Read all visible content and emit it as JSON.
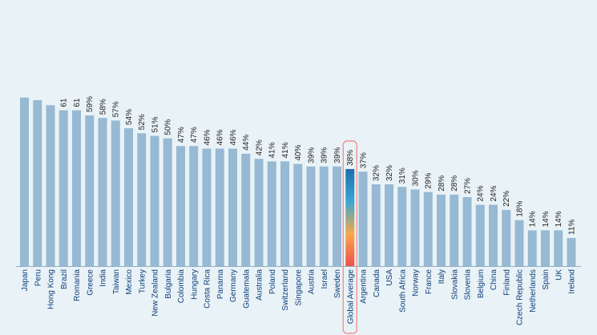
{
  "chart_data": {
    "type": "bar",
    "title": "",
    "xlabel": "",
    "ylabel": "",
    "ylim": [
      0,
      65
    ],
    "highlight_category": "Global Average",
    "categories": [
      "Japan",
      "Peru",
      "Hong Kong",
      "Brazil",
      "Romania",
      "Greece",
      "India",
      "Taiwan",
      "Mexico",
      "Turkey",
      "New Zealand",
      "Bulgaria",
      "Colombia",
      "Hungary",
      "Costa Rica",
      "Panama",
      "Germany",
      "Guatemala",
      "Australia",
      "Poland",
      "Switzerland",
      "Singapore",
      "Austria",
      "Israel",
      "Sweden",
      "Global Average",
      "Argentina",
      "Canada",
      "USA",
      "South Africa",
      "Norway",
      "France",
      "Italy",
      "Slovakia",
      "Slovenia",
      "Belgium",
      "China",
      "Finland",
      "Czech Republic",
      "Netherlands",
      "Spain",
      "UK",
      "Ireland"
    ],
    "values": [
      66,
      65,
      63,
      61,
      61,
      59,
      58,
      57,
      54,
      52,
      51,
      50,
      47,
      47,
      46,
      46,
      46,
      44,
      42,
      41,
      41,
      40,
      39,
      39,
      39,
      38,
      37,
      32,
      32,
      31,
      30,
      29,
      28,
      28,
      27,
      24,
      24,
      22,
      18,
      14,
      14,
      14,
      11
    ],
    "value_labels": [
      "",
      "",
      "",
      "61",
      "61",
      "59%",
      "58%",
      "57%",
      "54%",
      "52%",
      "51%",
      "50%",
      "47%",
      "47%",
      "46%",
      "46%",
      "46%",
      "44%",
      "42%",
      "41%",
      "41%",
      "40%",
      "39%",
      "39%",
      "39%",
      "38%",
      "37%",
      "32%",
      "32%",
      "31%",
      "30%",
      "29%",
      "28%",
      "28%",
      "27%",
      "24%",
      "24%",
      "22%",
      "18%",
      "14%",
      "14%",
      "14%",
      "11%"
    ]
  },
  "colors": {
    "background": "#e9f2f6",
    "bar": "#97b9d3",
    "axis": "#8fb0c4",
    "category_text": "#0d3f7a",
    "value_text": "#222222",
    "highlight_border": "#f08a8a",
    "highlight_gradient": [
      "#1e6fae",
      "#3aa6cf",
      "#f7a94b",
      "#ef4f4a"
    ]
  }
}
